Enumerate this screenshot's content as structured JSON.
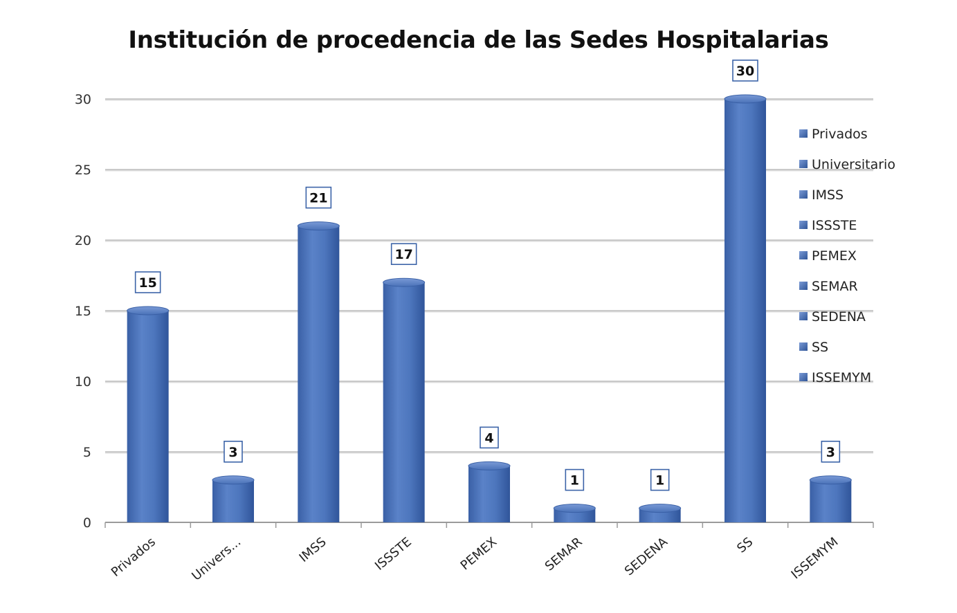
{
  "chart_data": {
    "type": "bar",
    "title": "Institución de procedencia de las Sedes Hospitalarias",
    "xlabel": "",
    "ylabel": "",
    "categories": [
      "Privados",
      "Univers...",
      "IMSS",
      "ISSSTE",
      "PEMEX",
      "SEMAR",
      "SEDENA",
      "SS",
      "ISSEMYM"
    ],
    "values": [
      15,
      3,
      21,
      17,
      4,
      1,
      1,
      30,
      3
    ],
    "ylim": [
      0,
      30
    ],
    "yticks": [
      0,
      5,
      10,
      15,
      20,
      25,
      30
    ],
    "grid": true,
    "legend_position": "right",
    "legend_entries": [
      "Privados",
      "Universitario",
      "IMSS",
      "ISSSTE",
      "PEMEX",
      "SEMAR",
      "SEDENA",
      "SS",
      "ISSEMYM"
    ],
    "bar_color": "#4a72b8",
    "bar_highlight": "#6f95d4",
    "bar_shadow": "#2f5597",
    "label_border_color": "#3c64a8"
  }
}
